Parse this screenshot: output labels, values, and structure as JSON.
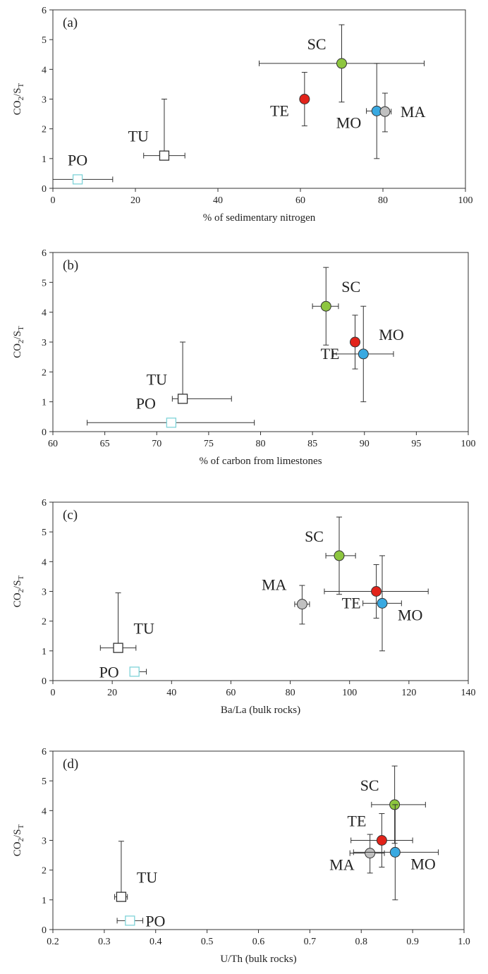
{
  "chart_data": [
    {
      "type": "scatter",
      "panel_label": "(a)",
      "xlabel": "% of sedimentary nitrogen",
      "ylabel_main": "CO",
      "ylabel_sub1": "2",
      "ylabel_mid": "/S",
      "ylabel_sub2": "T",
      "xlim": [
        0,
        100
      ],
      "ylim": [
        0,
        6
      ],
      "xticks": [
        0,
        20,
        40,
        60,
        80,
        100
      ],
      "yticks": [
        0,
        1,
        2,
        3,
        4,
        5,
        6
      ],
      "points": [
        {
          "label": "SC",
          "x": 70,
          "y": 4.2,
          "xerr": [
            50,
            90
          ],
          "yerr": [
            2.9,
            5.5
          ],
          "color": "#8dc63f",
          "shape": "circle",
          "label_pos": "upper-left"
        },
        {
          "label": "TE",
          "x": 61,
          "y": 3.0,
          "xerr": null,
          "yerr": [
            2.1,
            3.9
          ],
          "color": "#e2231a",
          "shape": "circle",
          "label_pos": "lower-left"
        },
        {
          "label": "MO",
          "x": 78.5,
          "y": 2.6,
          "xerr": [
            76,
            79.5
          ],
          "yerr": [
            1.0,
            4.2
          ],
          "color": "#39a9e1",
          "shape": "circle",
          "label_pos": "lower-left"
        },
        {
          "label": "MA",
          "x": 80.5,
          "y": 2.58,
          "xerr": [
            79.5,
            82
          ],
          "yerr": [
            1.9,
            3.2
          ],
          "color": "#c0c0c0",
          "shape": "circle",
          "label_pos": "right"
        },
        {
          "label": "TU",
          "x": 27,
          "y": 1.1,
          "xerr": [
            22,
            32
          ],
          "yerr": [
            1.1,
            3.0
          ],
          "color": "#ffffff",
          "shape": "square",
          "stroke": "#333333",
          "label_pos": "upper-left"
        },
        {
          "label": "PO",
          "x": 6,
          "y": 0.3,
          "xerr": [
            0,
            14.5
          ],
          "yerr": null,
          "color": "#ffffff",
          "shape": "square",
          "stroke": "#7fd3d8",
          "label_pos": "above"
        }
      ]
    },
    {
      "type": "scatter",
      "panel_label": "(b)",
      "xlabel": "% of carbon from limestones",
      "ylabel_main": "CO",
      "ylabel_sub1": "2",
      "ylabel_mid": "/S",
      "ylabel_sub2": "T",
      "xlim": [
        60,
        100
      ],
      "ylim": [
        0,
        6
      ],
      "xticks": [
        60,
        65,
        70,
        75,
        80,
        85,
        90,
        95,
        100
      ],
      "yticks": [
        0,
        1,
        2,
        3,
        4,
        5,
        6
      ],
      "points": [
        {
          "label": "SC",
          "x": 86.3,
          "y": 4.2,
          "xerr": [
            85,
            87.5
          ],
          "yerr": [
            2.9,
            5.5
          ],
          "color": "#8dc63f",
          "shape": "circle",
          "label_pos": "upper-right"
        },
        {
          "label": "MO",
          "x": 89.9,
          "y": 2.6,
          "xerr": [
            87,
            92.8
          ],
          "yerr": [
            1.0,
            4.2
          ],
          "color": "#39a9e1",
          "shape": "circle",
          "label_pos": "upper-right"
        },
        {
          "label": "TE",
          "x": 89.1,
          "y": 3.0,
          "xerr": null,
          "yerr": [
            2.1,
            3.9
          ],
          "color": "#e2231a",
          "shape": "circle",
          "label_pos": "lower-left"
        },
        {
          "label": "TU",
          "x": 72.5,
          "y": 1.1,
          "xerr": [
            71.5,
            77.2
          ],
          "yerr": [
            1.1,
            3.0
          ],
          "color": "#ffffff",
          "shape": "square",
          "stroke": "#333333",
          "label_pos": "upper-left"
        },
        {
          "label": "PO",
          "x": 71.4,
          "y": 0.3,
          "xerr": [
            63.3,
            79.4
          ],
          "yerr": null,
          "color": "#ffffff",
          "shape": "square",
          "stroke": "#7fd3d8",
          "label_pos": "upper-left"
        }
      ]
    },
    {
      "type": "scatter",
      "panel_label": "(c)",
      "xlabel": "Ba/La (bulk rocks)",
      "ylabel_main": "CO",
      "ylabel_sub1": "2",
      "ylabel_mid": "/S",
      "ylabel_sub2": "T",
      "xlim": [
        0,
        140
      ],
      "ylim": [
        0,
        6
      ],
      "xticks": [
        0,
        20,
        40,
        60,
        80,
        100,
        120,
        140
      ],
      "yticks": [
        0,
        1,
        2,
        3,
        4,
        5,
        6
      ],
      "points": [
        {
          "label": "SC",
          "x": 96.5,
          "y": 4.2,
          "xerr": [
            92,
            102
          ],
          "yerr": [
            2.9,
            5.5
          ],
          "color": "#8dc63f",
          "shape": "circle",
          "label_pos": "upper-left"
        },
        {
          "label": "MA",
          "x": 84,
          "y": 2.57,
          "xerr": [
            81.5,
            86.5
          ],
          "yerr": [
            1.9,
            3.2
          ],
          "color": "#c0c0c0",
          "shape": "circle",
          "label_pos": "upper-left"
        },
        {
          "label": "TE",
          "x": 109,
          "y": 3.0,
          "xerr": [
            91.5,
            126.5
          ],
          "yerr": [
            2.1,
            3.9
          ],
          "color": "#e2231a",
          "shape": "circle",
          "label_pos": "lower-left"
        },
        {
          "label": "MO",
          "x": 111,
          "y": 2.6,
          "xerr": [
            104.5,
            117.5
          ],
          "yerr": [
            1.0,
            4.2
          ],
          "color": "#39a9e1",
          "shape": "circle",
          "label_pos": "lower-right"
        },
        {
          "label": "TU",
          "x": 22,
          "y": 1.1,
          "xerr": [
            16,
            28
          ],
          "yerr": [
            1.1,
            2.95
          ],
          "color": "#ffffff",
          "shape": "square",
          "stroke": "#333333",
          "label_pos": "upper-right"
        },
        {
          "label": "PO",
          "x": 27.5,
          "y": 0.3,
          "xerr": [
            27.5,
            31.5
          ],
          "yerr": null,
          "color": "#ffffff",
          "shape": "square",
          "stroke": "#7fd3d8",
          "label_pos": "left"
        }
      ]
    },
    {
      "type": "scatter",
      "panel_label": "(d)",
      "xlabel": "U/Th (bulk rocks)",
      "ylabel_main": "CO",
      "ylabel_sub1": "2",
      "ylabel_mid": "/S",
      "ylabel_sub2": "T",
      "xlim": [
        0.2,
        1.0
      ],
      "ylim": [
        0,
        6
      ],
      "xticks": [
        0.2,
        0.3,
        0.4,
        0.5,
        0.6,
        0.7,
        0.8,
        0.9,
        1.0
      ],
      "yticks": [
        0,
        1,
        2,
        3,
        4,
        5,
        6
      ],
      "points": [
        {
          "label": "SC",
          "x": 0.865,
          "y": 4.2,
          "xerr": [
            0.82,
            0.925
          ],
          "yerr": [
            2.9,
            5.5
          ],
          "color": "#8dc63f",
          "shape": "circle",
          "label_pos": "upper-left"
        },
        {
          "label": "TE",
          "x": 0.84,
          "y": 3.0,
          "xerr": [
            0.78,
            0.9
          ],
          "yerr": [
            2.1,
            3.9
          ],
          "color": "#e2231a",
          "shape": "circle",
          "label_pos": "upper-left"
        },
        {
          "label": "MA",
          "x": 0.817,
          "y": 2.57,
          "xerr": [
            0.778,
            0.845
          ],
          "yerr": [
            1.9,
            3.2
          ],
          "color": "#c0c0c0",
          "shape": "circle",
          "label_pos": "lower-left"
        },
        {
          "label": "MO",
          "x": 0.866,
          "y": 2.6,
          "xerr": [
            0.785,
            0.95
          ],
          "yerr": [
            1.0,
            4.2
          ],
          "color": "#39a9e1",
          "shape": "circle",
          "label_pos": "lower-right"
        },
        {
          "label": "TU",
          "x": 0.333,
          "y": 1.1,
          "xerr": [
            0.32,
            0.345
          ],
          "yerr": [
            1.1,
            2.97
          ],
          "color": "#ffffff",
          "shape": "square",
          "stroke": "#333333",
          "label_pos": "upper-right"
        },
        {
          "label": "PO",
          "x": 0.35,
          "y": 0.3,
          "xerr": [
            0.325,
            0.375
          ],
          "yerr": null,
          "color": "#ffffff",
          "shape": "square",
          "stroke": "#7fd3d8",
          "label_pos": "right"
        }
      ]
    }
  ]
}
